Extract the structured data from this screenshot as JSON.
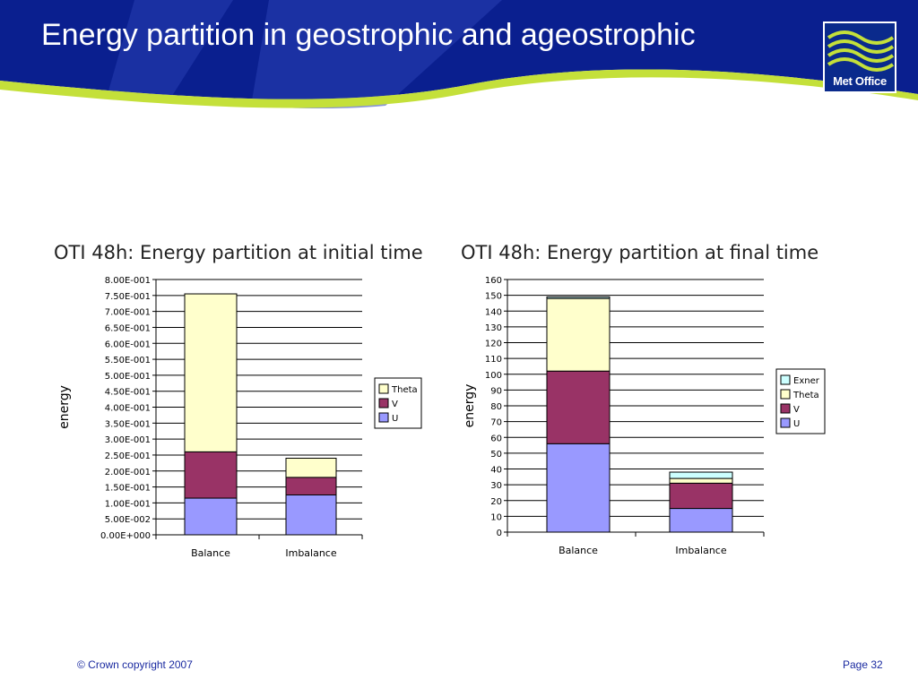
{
  "slide": {
    "title": "Energy partition in geostrophic and ageostrophic",
    "logo_text": "Met Office",
    "footer_copyright": "© Crown copyright 2007",
    "footer_page": "Page 32"
  },
  "colors": {
    "header_blue": "#0a1f8f",
    "header_mid": "#2a3fb5",
    "green_swoosh": "#c4e03a",
    "U": "#9999ff",
    "V": "#993366",
    "Theta": "#ffffcc",
    "Exner": "#ccffff"
  },
  "chart_data": [
    {
      "type": "bar",
      "stacked": true,
      "title": "OTI 48h: Energy partition at initial time",
      "xlabel": "",
      "ylabel": "energy",
      "categories": [
        "Balance",
        "Imbalance"
      ],
      "ylim": [
        0,
        0.8
      ],
      "yticks": [
        0,
        0.05,
        0.1,
        0.15,
        0.2,
        0.25,
        0.3,
        0.35,
        0.4,
        0.45,
        0.5,
        0.55,
        0.6,
        0.65,
        0.7,
        0.75,
        0.8
      ],
      "ytick_labels": [
        "0.00E+000",
        "5.00E-002",
        "1.00E-001",
        "1.50E-001",
        "2.00E-001",
        "2.50E-001",
        "3.00E-001",
        "3.50E-001",
        "4.00E-001",
        "4.50E-001",
        "5.00E-001",
        "5.50E-001",
        "6.00E-001",
        "6.50E-001",
        "7.00E-001",
        "7.50E-001",
        "8.00E-001"
      ],
      "grid": true,
      "legend": "right",
      "series": [
        {
          "name": "U",
          "values": [
            0.115,
            0.125
          ]
        },
        {
          "name": "V",
          "values": [
            0.145,
            0.055
          ]
        },
        {
          "name": "Theta",
          "values": [
            0.495,
            0.06
          ]
        }
      ],
      "legend_order": [
        "Theta",
        "V",
        "U"
      ]
    },
    {
      "type": "bar",
      "stacked": true,
      "title": "OTI 48h: Energy partition at final time",
      "xlabel": "",
      "ylabel": "energy",
      "categories": [
        "Balance",
        "Imbalance"
      ],
      "ylim": [
        0,
        160
      ],
      "yticks": [
        0,
        10,
        20,
        30,
        40,
        50,
        60,
        70,
        80,
        90,
        100,
        110,
        120,
        130,
        140,
        150,
        160
      ],
      "ytick_labels": [
        "0",
        "10",
        "20",
        "30",
        "40",
        "50",
        "60",
        "70",
        "80",
        "90",
        "100",
        "110",
        "120",
        "130",
        "140",
        "150",
        "160"
      ],
      "grid": true,
      "legend": "right",
      "series": [
        {
          "name": "U",
          "values": [
            56,
            15
          ]
        },
        {
          "name": "V",
          "values": [
            46,
            16
          ]
        },
        {
          "name": "Theta",
          "values": [
            46,
            3
          ]
        },
        {
          "name": "Exner",
          "values": [
            1,
            4
          ]
        }
      ],
      "legend_order": [
        "Exner",
        "Theta",
        "V",
        "U"
      ]
    }
  ]
}
